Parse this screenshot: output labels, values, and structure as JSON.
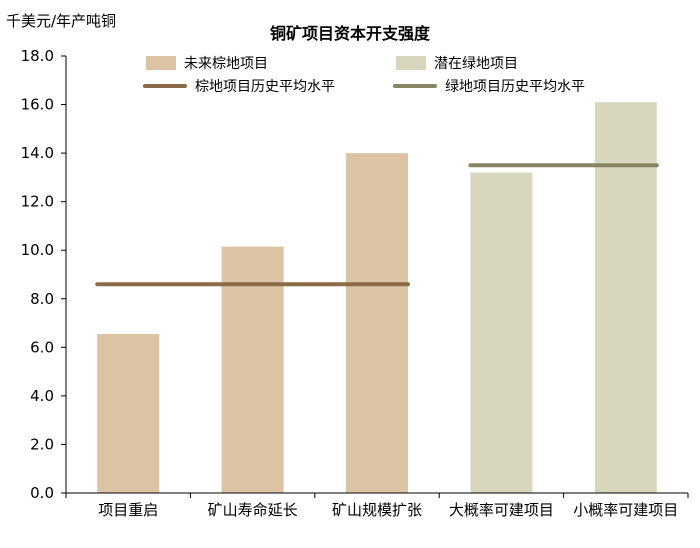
{
  "colors": {
    "brownfield_bar": "#dbc3a3",
    "greenfield_bar": "#d9d6be",
    "brownfield_line": "#8b6a47",
    "greenfield_line": "#878563",
    "axis": "#000000"
  },
  "chart_data": {
    "type": "bar",
    "title": "铜矿项目资本开支强度",
    "ylabel": "千美元/年产吨铜",
    "xlabel": "",
    "ylim": [
      0,
      18
    ],
    "yticks": [
      "0.0",
      "2.0",
      "4.0",
      "6.0",
      "8.0",
      "10.0",
      "12.0",
      "14.0",
      "16.0",
      "18.0"
    ],
    "categories": [
      "项目重启",
      "矿山寿命延长",
      "矿山规模扩张",
      "大概率可建项目",
      "小概率可建项目"
    ],
    "series": [
      {
        "name": "未来棕地项目",
        "values": [
          6.55,
          10.15,
          14.0,
          null,
          null
        ]
      },
      {
        "name": "潜在绿地项目",
        "values": [
          null,
          null,
          null,
          13.2,
          16.1
        ]
      }
    ],
    "reference_lines": [
      {
        "name": "棕地项目历史平均水平",
        "value": 8.6,
        "from_category": 0,
        "to_category": 2
      },
      {
        "name": "绿地项目历史平均水平",
        "value": 13.5,
        "from_category": 3,
        "to_category": 4
      }
    ],
    "legend": [
      "未来棕地项目",
      "潜在绿地项目",
      "棕地项目历史平均水平",
      "绿地项目历史平均水平"
    ],
    "legend_position": "top",
    "grid": false
  }
}
